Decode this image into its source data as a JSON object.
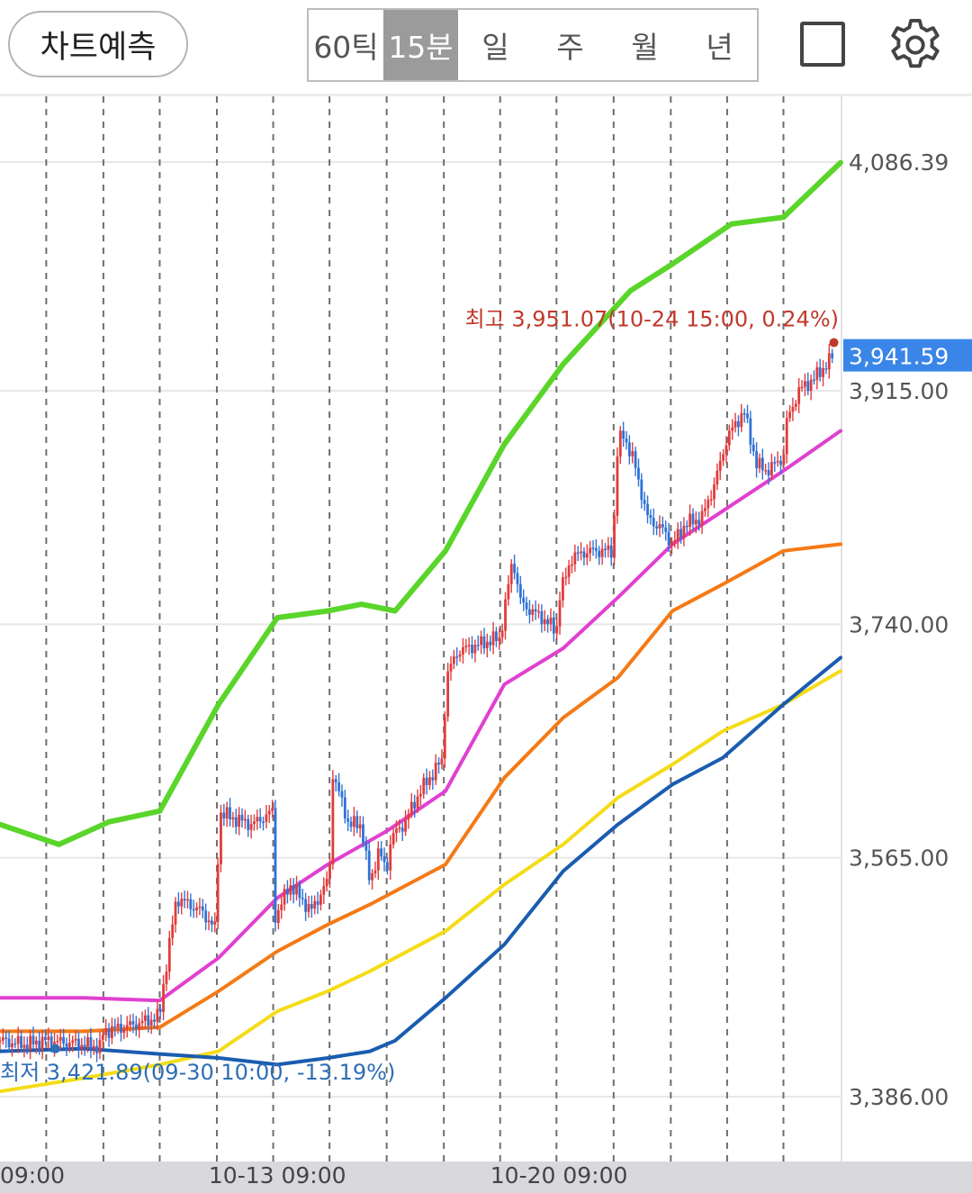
{
  "header": {
    "predict_label": "차트예측",
    "periods": [
      "60틱",
      "15분",
      "일",
      "주",
      "월",
      "년"
    ],
    "active_period": "15분",
    "icons": [
      "square-icon",
      "gear-icon"
    ]
  },
  "colors": {
    "grid": "#e8e8e8",
    "vgrid": "#6e6e6e",
    "up": "#e23b3b",
    "down": "#2f72d6",
    "green": "#5ad52a",
    "magenta": "#e040d0",
    "orange": "#f47a16",
    "yellow": "#f4dc18",
    "blue": "#1a5cb0",
    "price_tag": "#3a86e8",
    "high_text": "#c0392b",
    "low_text": "#2f6db5"
  },
  "chart_data": {
    "type": "line",
    "ylim": [
      3330,
      4125
    ],
    "xlim": [
      0,
      1
    ],
    "y_ticks": [
      {
        "value": 4086.39,
        "label": "4,086.39"
      },
      {
        "value": 3915.0,
        "label": "3,915.00"
      },
      {
        "value": 3740.0,
        "label": "3,740.00"
      },
      {
        "value": 3565.0,
        "label": "3,565.00"
      },
      {
        "value": 3386.0,
        "label": "3,386.00"
      }
    ],
    "x_ticks": [
      {
        "x": 0.02,
        "label": "09:00"
      },
      {
        "x": 0.33,
        "label": "10-13 09:00"
      },
      {
        "x": 0.665,
        "label": "10-20 09:00"
      }
    ],
    "session_lines": [
      0.055,
      0.123,
      0.19,
      0.258,
      0.325,
      0.392,
      0.46,
      0.528,
      0.595,
      0.662,
      0.73,
      0.798,
      0.865,
      0.932
    ],
    "current_price": {
      "value": 3941.59,
      "label": "3,941.59"
    },
    "high_annotation": {
      "x": 0.992,
      "value": 3951.07,
      "text": "최고 3,951.07(10-24 15:00, 0.24%)"
    },
    "low_annotation": {
      "x": 0.066,
      "value": 3421.89,
      "text": "최저 3,421.89(09-30 10:00, -13.19%)"
    },
    "price_path": [
      [
        0.0,
        3428
      ],
      [
        0.03,
        3425
      ],
      [
        0.055,
        3428
      ],
      [
        0.09,
        3426
      ],
      [
        0.12,
        3423
      ],
      [
        0.123,
        3435
      ],
      [
        0.16,
        3440
      ],
      [
        0.19,
        3446
      ],
      [
        0.192,
        3460
      ],
      [
        0.21,
        3535
      ],
      [
        0.24,
        3525
      ],
      [
        0.258,
        3510
      ],
      [
        0.26,
        3600
      ],
      [
        0.275,
        3595
      ],
      [
        0.3,
        3590
      ],
      [
        0.325,
        3600
      ],
      [
        0.327,
        3520
      ],
      [
        0.345,
        3545
      ],
      [
        0.37,
        3525
      ],
      [
        0.392,
        3550
      ],
      [
        0.395,
        3630
      ],
      [
        0.415,
        3590
      ],
      [
        0.43,
        3590
      ],
      [
        0.44,
        3545
      ],
      [
        0.45,
        3570
      ],
      [
        0.46,
        3555
      ],
      [
        0.465,
        3580
      ],
      [
        0.48,
        3590
      ],
      [
        0.5,
        3615
      ],
      [
        0.528,
        3640
      ],
      [
        0.53,
        3700
      ],
      [
        0.545,
        3720
      ],
      [
        0.57,
        3725
      ],
      [
        0.595,
        3730
      ],
      [
        0.61,
        3790
      ],
      [
        0.62,
        3755
      ],
      [
        0.645,
        3745
      ],
      [
        0.662,
        3735
      ],
      [
        0.665,
        3760
      ],
      [
        0.68,
        3790
      ],
      [
        0.7,
        3795
      ],
      [
        0.73,
        3795
      ],
      [
        0.732,
        3860
      ],
      [
        0.74,
        3885
      ],
      [
        0.755,
        3860
      ],
      [
        0.77,
        3820
      ],
      [
        0.79,
        3810
      ],
      [
        0.8,
        3800
      ],
      [
        0.815,
        3815
      ],
      [
        0.835,
        3820
      ],
      [
        0.85,
        3845
      ],
      [
        0.865,
        3880
      ],
      [
        0.885,
        3900
      ],
      [
        0.9,
        3860
      ],
      [
        0.912,
        3855
      ],
      [
        0.932,
        3865
      ],
      [
        0.935,
        3890
      ],
      [
        0.95,
        3915
      ],
      [
        0.97,
        3925
      ],
      [
        0.992,
        3941.59
      ]
    ],
    "series": [
      {
        "color_key": "green",
        "width": 6,
        "points": [
          [
            0,
            3590
          ],
          [
            0.07,
            3575
          ],
          [
            0.13,
            3592
          ],
          [
            0.19,
            3600
          ],
          [
            0.26,
            3680
          ],
          [
            0.33,
            3745
          ],
          [
            0.39,
            3750
          ],
          [
            0.43,
            3755
          ],
          [
            0.47,
            3750
          ],
          [
            0.53,
            3795
          ],
          [
            0.6,
            3875
          ],
          [
            0.67,
            3935
          ],
          [
            0.75,
            3990
          ],
          [
            0.8,
            4010
          ],
          [
            0.87,
            4040
          ],
          [
            0.932,
            4045
          ],
          [
            1.0,
            4086
          ]
        ]
      },
      {
        "color_key": "magenta",
        "width": 4,
        "points": [
          [
            0,
            3460
          ],
          [
            0.1,
            3460
          ],
          [
            0.19,
            3458
          ],
          [
            0.26,
            3490
          ],
          [
            0.33,
            3535
          ],
          [
            0.39,
            3560
          ],
          [
            0.46,
            3585
          ],
          [
            0.53,
            3615
          ],
          [
            0.6,
            3695
          ],
          [
            0.67,
            3722
          ],
          [
            0.735,
            3760
          ],
          [
            0.8,
            3800
          ],
          [
            0.86,
            3825
          ],
          [
            0.932,
            3855
          ],
          [
            1.0,
            3885
          ]
        ]
      },
      {
        "color_key": "orange",
        "width": 4,
        "points": [
          [
            0,
            3435
          ],
          [
            0.1,
            3435
          ],
          [
            0.19,
            3438
          ],
          [
            0.26,
            3465
          ],
          [
            0.33,
            3495
          ],
          [
            0.39,
            3515
          ],
          [
            0.44,
            3530
          ],
          [
            0.53,
            3560
          ],
          [
            0.6,
            3625
          ],
          [
            0.67,
            3670
          ],
          [
            0.735,
            3700
          ],
          [
            0.8,
            3750
          ],
          [
            0.86,
            3770
          ],
          [
            0.932,
            3795
          ],
          [
            1.0,
            3800
          ]
        ]
      },
      {
        "color_key": "yellow",
        "width": 4,
        "points": [
          [
            0,
            3390
          ],
          [
            0.1,
            3400
          ],
          [
            0.19,
            3410
          ],
          [
            0.26,
            3420
          ],
          [
            0.33,
            3450
          ],
          [
            0.39,
            3465
          ],
          [
            0.44,
            3480
          ],
          [
            0.53,
            3510
          ],
          [
            0.6,
            3545
          ],
          [
            0.67,
            3575
          ],
          [
            0.735,
            3610
          ],
          [
            0.8,
            3635
          ],
          [
            0.86,
            3660
          ],
          [
            0.932,
            3680
          ],
          [
            1.0,
            3705
          ]
        ]
      },
      {
        "color_key": "blue",
        "width": 4,
        "points": [
          [
            0,
            3420
          ],
          [
            0.1,
            3422
          ],
          [
            0.19,
            3418
          ],
          [
            0.26,
            3415
          ],
          [
            0.33,
            3410
          ],
          [
            0.39,
            3415
          ],
          [
            0.44,
            3420
          ],
          [
            0.47,
            3428
          ],
          [
            0.53,
            3460
          ],
          [
            0.6,
            3500
          ],
          [
            0.67,
            3555
          ],
          [
            0.735,
            3590
          ],
          [
            0.8,
            3620
          ],
          [
            0.86,
            3640
          ],
          [
            0.932,
            3680
          ],
          [
            1.0,
            3715
          ]
        ]
      }
    ]
  }
}
